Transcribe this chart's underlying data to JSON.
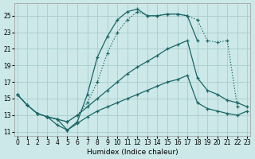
{
  "xlabel": "Humidex (Indice chaleur)",
  "bg_color": "#cce8e8",
  "grid_color": "#aacccc",
  "line_color": "#1a6666",
  "xlim": [
    -0.3,
    23.3
  ],
  "ylim": [
    10.5,
    26.5
  ],
  "yticks": [
    11,
    13,
    15,
    17,
    19,
    21,
    23,
    25
  ],
  "xticks": [
    0,
    1,
    2,
    3,
    4,
    5,
    6,
    7,
    8,
    9,
    10,
    11,
    12,
    13,
    14,
    15,
    16,
    17,
    18,
    19,
    20,
    21,
    22,
    23
  ],
  "line_dotted_x": [
    0,
    1,
    2,
    3,
    4,
    5,
    6,
    7,
    8,
    9,
    10,
    11,
    12,
    13,
    14,
    15,
    16,
    17,
    18,
    19,
    20,
    21,
    22
  ],
  "line_dotted_y": [
    15.5,
    14.2,
    13.2,
    12.8,
    12.5,
    12.2,
    13.0,
    14.5,
    17.0,
    20.5,
    23.0,
    24.5,
    25.5,
    25.0,
    25.0,
    25.2,
    25.2,
    25.0,
    24.5,
    22.0,
    21.8,
    22.0,
    14.0
  ],
  "line_solid1_x": [
    3,
    4,
    5,
    6,
    7,
    8,
    9,
    10,
    11,
    12,
    13,
    14,
    15,
    16,
    17,
    18
  ],
  "line_solid1_y": [
    12.8,
    12.5,
    11.2,
    12.2,
    15.5,
    20.0,
    22.5,
    24.5,
    25.5,
    25.8,
    25.0,
    25.0,
    25.2,
    25.2,
    25.0,
    22.0
  ],
  "line_solid2_x": [
    0,
    1,
    2,
    3,
    4,
    5,
    6,
    7,
    8,
    9,
    10,
    11,
    12,
    13,
    14,
    15,
    16,
    17,
    18,
    19,
    20,
    21,
    22,
    23
  ],
  "line_solid2_y": [
    15.5,
    14.2,
    13.2,
    12.8,
    12.5,
    12.2,
    13.0,
    14.0,
    15.0,
    16.0,
    17.0,
    18.0,
    18.8,
    19.5,
    20.2,
    21.0,
    21.5,
    22.0,
    17.5,
    16.0,
    15.5,
    14.8,
    14.5,
    14.0
  ],
  "line_solid3_x": [
    0,
    1,
    2,
    3,
    4,
    5,
    6,
    7,
    8,
    9,
    10,
    11,
    12,
    13,
    14,
    15,
    16,
    17,
    18,
    19,
    20,
    21,
    22,
    23
  ],
  "line_solid3_y": [
    15.5,
    14.2,
    13.2,
    12.8,
    11.8,
    11.2,
    12.0,
    12.8,
    13.5,
    14.0,
    14.5,
    15.0,
    15.5,
    16.0,
    16.5,
    17.0,
    17.3,
    17.8,
    14.5,
    13.8,
    13.5,
    13.2,
    13.0,
    13.5
  ]
}
